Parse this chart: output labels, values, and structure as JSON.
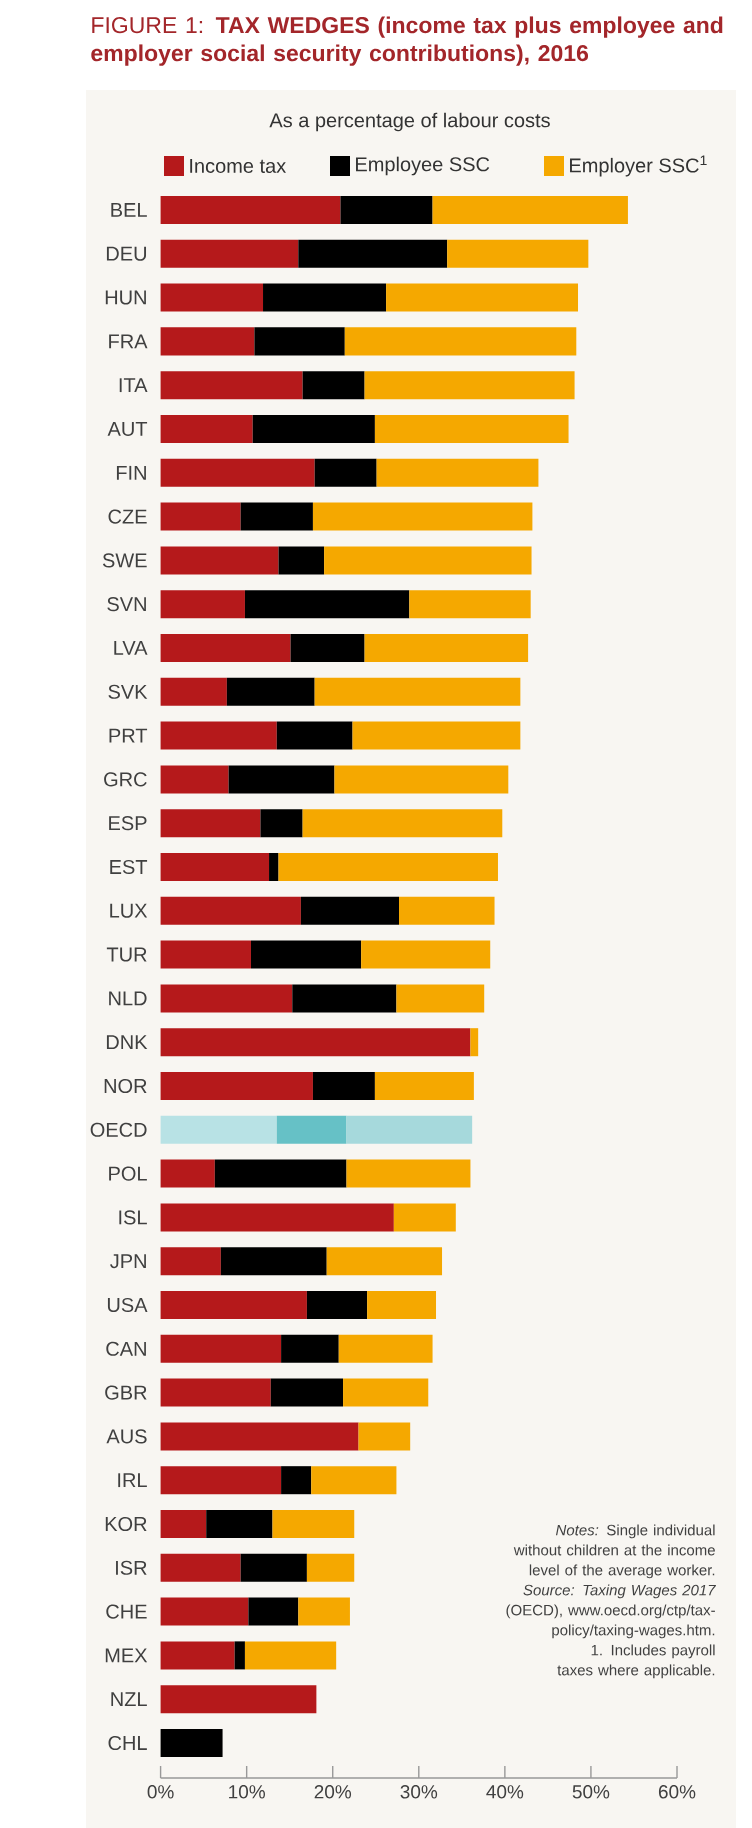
{
  "chart_data": {
    "type": "bar",
    "orientation": "horizontal",
    "stacked": true,
    "title": "FIGURE 1: **TAX WEDGES (income tax plus employee and employer social security contributions), 2016**",
    "subtitle": "As a percentage of labour costs",
    "categories": [
      "BEL",
      "DEU",
      "HUN",
      "FRA",
      "ITA",
      "AUT",
      "FIN",
      "CZE",
      "SWE",
      "SVN",
      "LVA",
      "SVK",
      "PRT",
      "GRC",
      "ESP",
      "EST",
      "LUX",
      "TUR",
      "NLD",
      "DNK",
      "NOR",
      "OECD",
      "POL",
      "ISL",
      "JPN",
      "USA",
      "CAN",
      "GBR",
      "AUS",
      "IRL",
      "KOR",
      "ISR",
      "CHE",
      "MEX",
      "NZL",
      "CHL"
    ],
    "series": [
      {
        "name": "Income tax",
        "color": "#b5191b",
        "colors": [
          "#b5191b",
          "#b5191b",
          "#b5191b",
          "#b5191b",
          "#b5191b",
          "#b5191b",
          "#b5191b",
          "#b5191b",
          "#b5191b",
          "#b5191b",
          "#b5191b",
          "#b5191b",
          "#b5191b",
          "#b5191b",
          "#b5191b",
          "#b5191b",
          "#b5191b",
          "#b5191b",
          "#b5191b",
          "#b5191b",
          "#b5191b",
          "#b8e2e5",
          "#b5191b",
          "#b5191b",
          "#b5191b",
          "#b5191b",
          "#b5191b",
          "#b5191b",
          "#b5191b",
          "#b5191b",
          "#b5191b",
          "#b5191b",
          "#b5191b",
          "#b5191b",
          "#b5191b",
          "#b5191b"
        ],
        "values": [
          20.9,
          16.0,
          11.9,
          10.9,
          16.5,
          10.7,
          17.9,
          9.3,
          13.7,
          9.8,
          15.1,
          7.7,
          13.5,
          7.9,
          11.6,
          12.6,
          16.3,
          10.5,
          15.3,
          36.0,
          17.7,
          13.5,
          6.3,
          27.1,
          7.0,
          17.0,
          14.0,
          12.8,
          23.0,
          14.0,
          5.3,
          9.3,
          10.2,
          8.6,
          18.1,
          0
        ]
      },
      {
        "name": "Employee SSC",
        "color": "#000000",
        "colors": [
          "#000000",
          "#000000",
          "#000000",
          "#000000",
          "#000000",
          "#000000",
          "#000000",
          "#000000",
          "#000000",
          "#000000",
          "#000000",
          "#000000",
          "#000000",
          "#000000",
          "#000000",
          "#000000",
          "#000000",
          "#000000",
          "#000000",
          "#000000",
          "#000000",
          "#66c1c6",
          "#000000",
          "#000000",
          "#000000",
          "#000000",
          "#000000",
          "#000000",
          "#000000",
          "#000000",
          "#000000",
          "#000000",
          "#000000",
          "#000000",
          "#000000",
          "#000000"
        ],
        "values": [
          10.7,
          17.3,
          14.3,
          10.5,
          7.2,
          14.2,
          7.2,
          8.4,
          5.3,
          19.1,
          8.6,
          10.2,
          8.8,
          12.3,
          4.9,
          1.1,
          11.4,
          12.8,
          12.1,
          0,
          7.2,
          8.1,
          15.3,
          0,
          12.3,
          7.0,
          6.7,
          8.4,
          0,
          3.5,
          7.7,
          7.7,
          5.8,
          1.2,
          0,
          7.2
        ]
      },
      {
        "name": "Employer SSC$^{1}$",
        "color": "#f5a800",
        "colors": [
          "#f5a800",
          "#f5a800",
          "#f5a800",
          "#f5a800",
          "#f5a800",
          "#f5a800",
          "#f5a800",
          "#f5a800",
          "#f5a800",
          "#f5a800",
          "#f5a800",
          "#f5a800",
          "#f5a800",
          "#f5a800",
          "#f5a800",
          "#f5a800",
          "#f5a800",
          "#f5a800",
          "#f5a800",
          "#f5a800",
          "#f5a800",
          "#a6d9dc",
          "#f5a800",
          "#f5a800",
          "#f5a800",
          "#f5a800",
          "#f5a800",
          "#f5a800",
          "#f5a800",
          "#f5a800",
          "#f5a800",
          "#f5a800",
          "#f5a800",
          "#f5a800",
          "#f5a800",
          "#f5a800"
        ],
        "values": [
          22.7,
          16.4,
          22.3,
          26.9,
          24.4,
          22.5,
          18.8,
          25.5,
          24.1,
          14.1,
          19.0,
          23.9,
          19.5,
          20.2,
          23.2,
          25.5,
          11.1,
          15.0,
          10.2,
          0.9,
          11.5,
          14.6,
          14.4,
          7.2,
          13.4,
          8.0,
          10.9,
          9.9,
          6.0,
          9.9,
          9.5,
          5.5,
          6.0,
          10.6,
          0,
          0
        ]
      }
    ],
    "xlim": [
      0,
      60
    ],
    "xticks": [
      {
        "value": 0,
        "label": "0%"
      },
      {
        "value": 10,
        "label": "10%"
      },
      {
        "value": 20,
        "label": "20%"
      },
      {
        "value": 30,
        "label": "30%"
      },
      {
        "value": 40,
        "label": "40%"
      },
      {
        "value": 50,
        "label": "50%"
      },
      {
        "value": 60,
        "label": "60%"
      }
    ],
    "legend": "top",
    "annotations": [
      "*Notes:* Single individual without children at the income level of the average worker.",
      "*Source:* *Taxing Wages 2017* (OECD), www.oecd.org/ctp/tax-policy/taxing-wages.htm.",
      "1. Includes payroll taxes where applicable."
    ]
  }
}
